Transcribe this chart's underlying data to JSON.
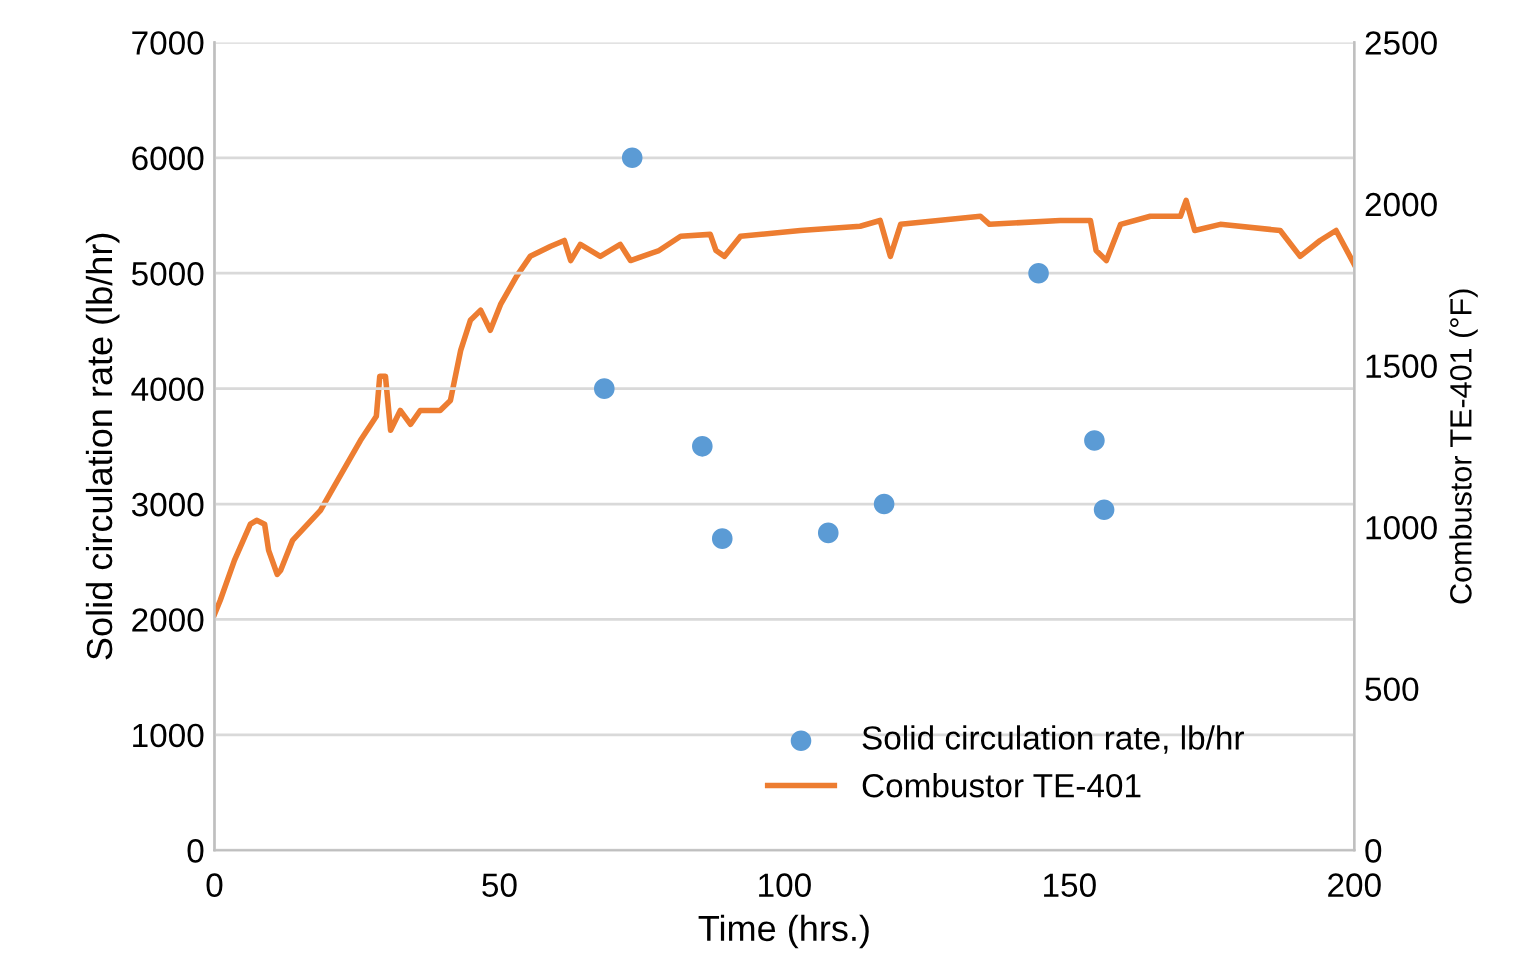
{
  "chart_data": {
    "type": "scatter",
    "xlabel": "Time (hrs.)",
    "ylabel": "Solid circulation rate (lb/hr)",
    "y2label": "Combustor TE-401 (°F)",
    "xlim": [
      0,
      200
    ],
    "xticks": [
      0,
      50,
      100,
      150,
      200
    ],
    "ylim": [
      0,
      7000
    ],
    "yticks": [
      0,
      1000,
      2000,
      3000,
      4000,
      5000,
      6000,
      7000
    ],
    "y2lim": [
      0,
      2500
    ],
    "y2ticks": [
      0,
      500,
      1000,
      1500,
      2000,
      2500
    ],
    "grid": "y",
    "legend": "bottom right",
    "series": [
      {
        "name": "Solid circulation rate, lb/hr",
        "color": "#5b9bd5",
        "marker": "circle",
        "x": [
          68.4,
          73.3,
          85.6,
          89.1,
          107.7,
          117.5,
          144.6,
          154.4,
          156.1
        ],
        "values": [
          4000,
          6000,
          3500,
          2700,
          2750,
          3000,
          5000,
          3550,
          2950
        ]
      },
      {
        "name": "Combustor TE-401",
        "type": "line",
        "axis": "y2",
        "color": "#ed7d31",
        "marker": "none",
        "line_style": "solid",
        "x": [
          0,
          1,
          3.5,
          6.3,
          7.4,
          8.8,
          9.5,
          11,
          11.6,
          13.7,
          18.6,
          22,
          25.6,
          28.4,
          29,
          30,
          30.9,
          32.6,
          34.4,
          36.1,
          39.6,
          41.4,
          43.2,
          44.9,
          46.7,
          48.4,
          50.2,
          53,
          55.4,
          59,
          61.4,
          62.5,
          64.2,
          67.7,
          71.2,
          73,
          78,
          81.8,
          87,
          88,
          89.5,
          92.3,
          102.8,
          113.3,
          116.8,
          118.6,
          120.4,
          134.4,
          136,
          148.4,
          153.7,
          154.7,
          156.5,
          159,
          164.2,
          169.5,
          170.5,
          172,
          176.5,
          187,
          190.5,
          194,
          196.8,
          200
        ],
        "values": [
          730,
          773,
          897,
          1009,
          1021,
          1009,
          928,
          854,
          866,
          959,
          1052,
          1157,
          1268,
          1343,
          1467,
          1467,
          1300,
          1361,
          1318,
          1361,
          1361,
          1392,
          1547,
          1640,
          1671,
          1609,
          1689,
          1776,
          1838,
          1869,
          1887,
          1825,
          1875,
          1838,
          1875,
          1825,
          1856,
          1900,
          1906,
          1856,
          1838,
          1900,
          1918,
          1931,
          1949,
          1838,
          1937,
          1962,
          1937,
          1949,
          1949,
          1856,
          1825,
          1937,
          1962,
          1962,
          2011,
          1918,
          1937,
          1918,
          1838,
          1887,
          1918,
          1813
        ]
      }
    ]
  }
}
